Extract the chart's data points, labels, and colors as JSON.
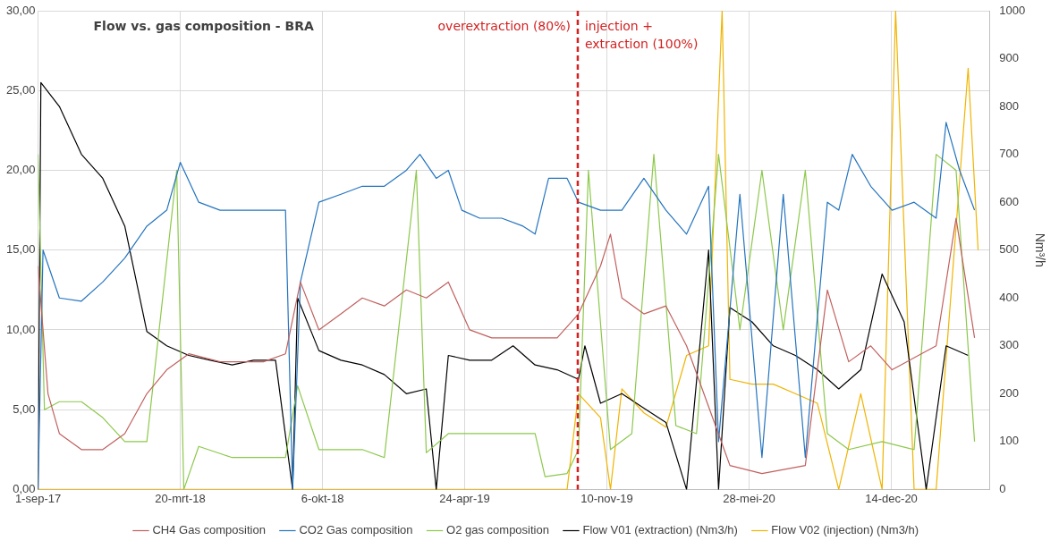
{
  "chart_data": {
    "type": "line",
    "title": "Flow vs. gas composition - BRA",
    "y2label": "Nm³/h",
    "xlim": [
      "2017-09-01",
      "2021-05-01"
    ],
    "xticks": [
      {
        "value": "2017-09-01",
        "label": "1-sep-17"
      },
      {
        "value": "2018-03-20",
        "label": "20-mrt-18"
      },
      {
        "value": "2018-10-06",
        "label": "6-okt-18"
      },
      {
        "value": "2019-04-24",
        "label": "24-apr-19"
      },
      {
        "value": "2019-11-10",
        "label": "10-nov-19"
      },
      {
        "value": "2020-05-28",
        "label": "28-mei-20"
      },
      {
        "value": "2020-12-14",
        "label": "14-dec-20"
      }
    ],
    "ylim": [
      0,
      30
    ],
    "yticks": [
      {
        "value": 0,
        "label": "0,00"
      },
      {
        "value": 5,
        "label": "5,00"
      },
      {
        "value": 10,
        "label": "10,00"
      },
      {
        "value": 15,
        "label": "15,00"
      },
      {
        "value": 20,
        "label": "20,00"
      },
      {
        "value": 25,
        "label": "25,00"
      },
      {
        "value": 30,
        "label": "30,00"
      }
    ],
    "y2lim": [
      0,
      1000
    ],
    "y2ticks": [
      0,
      100,
      200,
      300,
      400,
      500,
      600,
      700,
      800,
      900,
      1000
    ],
    "grid": true,
    "legend": "bottom",
    "marker": "none",
    "line_style": "solid",
    "ref_lines": [
      {
        "axis": "x",
        "value": "2019-09-30",
        "color": "#d42020",
        "line_style": "dashed"
      }
    ],
    "annotations": [
      "overextraction (80%)",
      "injection +\nextraction (100%)"
    ],
    "series": [
      {
        "name": "CH4 Gas composition",
        "color": "#c0605e",
        "x": [
          "2017-09-01",
          "2017-09-15",
          "2017-10-01",
          "2017-11-01",
          "2017-12-01",
          "2018-01-01",
          "2018-02-01",
          "2018-03-01",
          "2018-04-01",
          "2018-05-15",
          "2018-07-15",
          "2018-08-15",
          "2018-09-05",
          "2018-10-01",
          "2018-11-01",
          "2018-12-01",
          "2019-01-01",
          "2019-02-01",
          "2019-03-01",
          "2019-04-01",
          "2019-05-01",
          "2019-06-01",
          "2019-07-15",
          "2019-09-01",
          "2019-10-01",
          "2019-11-01",
          "2019-11-15",
          "2019-12-01",
          "2020-01-01",
          "2020-02-01",
          "2020-03-01",
          "2020-05-01",
          "2020-06-15",
          "2020-08-15",
          "2020-09-15",
          "2020-10-15",
          "2020-11-15",
          "2020-12-15",
          "2021-02-15",
          "2021-03-15",
          "2021-04-10"
        ],
        "values": [
          14,
          6,
          3.5,
          2.5,
          2.5,
          3.5,
          6,
          7.5,
          8.5,
          8,
          8,
          8.5,
          13,
          10,
          11,
          12,
          11.5,
          12.5,
          12,
          13,
          10,
          9.5,
          9.5,
          9.5,
          11,
          14,
          16,
          12,
          11,
          11.5,
          9,
          1.5,
          1,
          1.5,
          12.5,
          8,
          9,
          7.5,
          9,
          17,
          9.5
        ]
      },
      {
        "name": "CO2 Gas composition",
        "color": "#2474bf",
        "x": [
          "2017-09-01",
          "2017-09-08",
          "2017-10-01",
          "2017-11-01",
          "2017-12-01",
          "2018-01-01",
          "2018-02-01",
          "2018-03-01",
          "2018-03-20",
          "2018-04-15",
          "2018-05-15",
          "2018-06-15",
          "2018-07-15",
          "2018-08-15",
          "2018-08-25",
          "2018-09-05",
          "2018-10-01",
          "2018-11-01",
          "2018-12-01",
          "2019-01-01",
          "2019-02-01",
          "2019-02-20",
          "2019-03-15",
          "2019-04-01",
          "2019-04-20",
          "2019-05-15",
          "2019-06-15",
          "2019-07-15",
          "2019-08-01",
          "2019-08-20",
          "2019-09-15",
          "2019-10-01",
          "2019-11-01",
          "2019-12-01",
          "2020-01-01",
          "2020-02-01",
          "2020-03-01",
          "2020-04-01",
          "2020-04-15",
          "2020-05-15",
          "2020-06-15",
          "2020-07-15",
          "2020-08-15",
          "2020-09-15",
          "2020-10-01",
          "2020-10-20",
          "2020-11-15",
          "2020-12-15",
          "2021-01-15",
          "2021-02-15",
          "2021-03-01",
          "2021-03-20",
          "2021-04-10"
        ],
        "values": [
          0,
          15,
          12,
          11.8,
          13,
          14.5,
          16.5,
          17.5,
          20.5,
          18,
          17.5,
          17.5,
          17.5,
          17.5,
          0,
          13,
          18,
          18.5,
          19,
          19,
          20,
          21,
          19.5,
          20,
          17.5,
          17,
          17,
          16.5,
          16,
          19.5,
          19.5,
          18,
          17.5,
          17.5,
          19.5,
          17.5,
          16,
          19,
          3,
          18.5,
          2,
          18.5,
          2,
          18,
          17.5,
          21,
          19,
          17.5,
          18,
          17,
          23,
          20,
          17.5
        ]
      },
      {
        "name": "O2 gas composition",
        "color": "#8cc84b",
        "x": [
          "2017-09-01",
          "2017-09-10",
          "2017-10-01",
          "2017-11-01",
          "2017-12-01",
          "2018-01-01",
          "2018-02-01",
          "2018-03-15",
          "2018-03-25",
          "2018-04-15",
          "2018-06-01",
          "2018-08-15",
          "2018-09-01",
          "2018-10-01",
          "2018-12-01",
          "2019-01-01",
          "2019-02-15",
          "2019-03-01",
          "2019-04-01",
          "2019-06-01",
          "2019-08-01",
          "2019-08-15",
          "2019-09-15",
          "2019-10-01",
          "2019-10-15",
          "2019-11-15",
          "2019-12-15",
          "2020-01-15",
          "2020-02-15",
          "2020-03-15",
          "2020-04-15",
          "2020-05-15",
          "2020-06-15",
          "2020-07-15",
          "2020-08-15",
          "2020-09-15",
          "2020-10-15",
          "2020-12-01",
          "2021-01-15",
          "2021-02-15",
          "2021-03-15",
          "2021-04-10"
        ],
        "values": [
          21,
          5,
          5.5,
          5.5,
          4.5,
          3,
          3,
          20,
          0,
          2.7,
          2,
          2,
          6.5,
          2.5,
          2.5,
          2,
          20,
          2.3,
          3.5,
          3.5,
          3.5,
          0.8,
          1,
          2.5,
          20,
          2.5,
          3.5,
          21,
          4,
          3.5,
          21,
          10,
          20,
          10,
          20,
          3.5,
          2.5,
          3,
          2.5,
          21,
          20,
          3
        ]
      },
      {
        "name": "Flow V01 (extraction) (Nm3/h)",
        "color": "#000000",
        "axis": "y2",
        "x": [
          "2017-09-01",
          "2017-09-05",
          "2017-10-01",
          "2017-11-01",
          "2017-12-01",
          "2018-01-01",
          "2018-02-01",
          "2018-03-01",
          "2018-04-01",
          "2018-05-01",
          "2018-06-01",
          "2018-07-01",
          "2018-08-01",
          "2018-08-25",
          "2018-09-01",
          "2018-10-01",
          "2018-11-01",
          "2018-12-01",
          "2019-01-01",
          "2019-02-01",
          "2019-03-01",
          "2019-03-15",
          "2019-04-01",
          "2019-05-01",
          "2019-06-01",
          "2019-07-01",
          "2019-08-01",
          "2019-09-01",
          "2019-10-01",
          "2019-10-10",
          "2019-11-01",
          "2019-12-01",
          "2020-01-01",
          "2020-02-01",
          "2020-03-01",
          "2020-04-01",
          "2020-04-15",
          "2020-05-01",
          "2020-06-01",
          "2020-07-01",
          "2020-08-01",
          "2020-09-01",
          "2020-10-01",
          "2020-11-01",
          "2020-12-01",
          "2021-01-01",
          "2021-02-01",
          "2021-03-01",
          "2021-04-01"
        ],
        "values": [
          0,
          850,
          800,
          700,
          650,
          550,
          330,
          300,
          280,
          270,
          260,
          270,
          270,
          0,
          400,
          290,
          270,
          260,
          240,
          200,
          210,
          0,
          280,
          270,
          270,
          300,
          260,
          250,
          230,
          300,
          180,
          200,
          170,
          140,
          0,
          500,
          0,
          380,
          350,
          300,
          280,
          250,
          210,
          250,
          450,
          350,
          0,
          300,
          280
        ]
      },
      {
        "name": "Flow V02 (injection) (Nm3/h)",
        "color": "#f0b400",
        "axis": "y2",
        "x": [
          "2017-09-01",
          "2019-09-15",
          "2019-10-01",
          "2019-11-01",
          "2019-11-15",
          "2019-12-01",
          "2020-01-01",
          "2020-02-01",
          "2020-03-01",
          "2020-04-01",
          "2020-04-20",
          "2020-05-01",
          "2020-06-01",
          "2020-07-01",
          "2020-08-01",
          "2020-09-01",
          "2020-10-01",
          "2020-11-01",
          "2020-12-01",
          "2020-12-20",
          "2021-01-15",
          "2021-02-15",
          "2021-04-01",
          "2021-04-15"
        ],
        "values": [
          0,
          0,
          200,
          150,
          0,
          210,
          160,
          130,
          280,
          300,
          1000,
          230,
          220,
          220,
          200,
          180,
          0,
          200,
          0,
          1000,
          0,
          0,
          880,
          500
        ]
      }
    ]
  }
}
